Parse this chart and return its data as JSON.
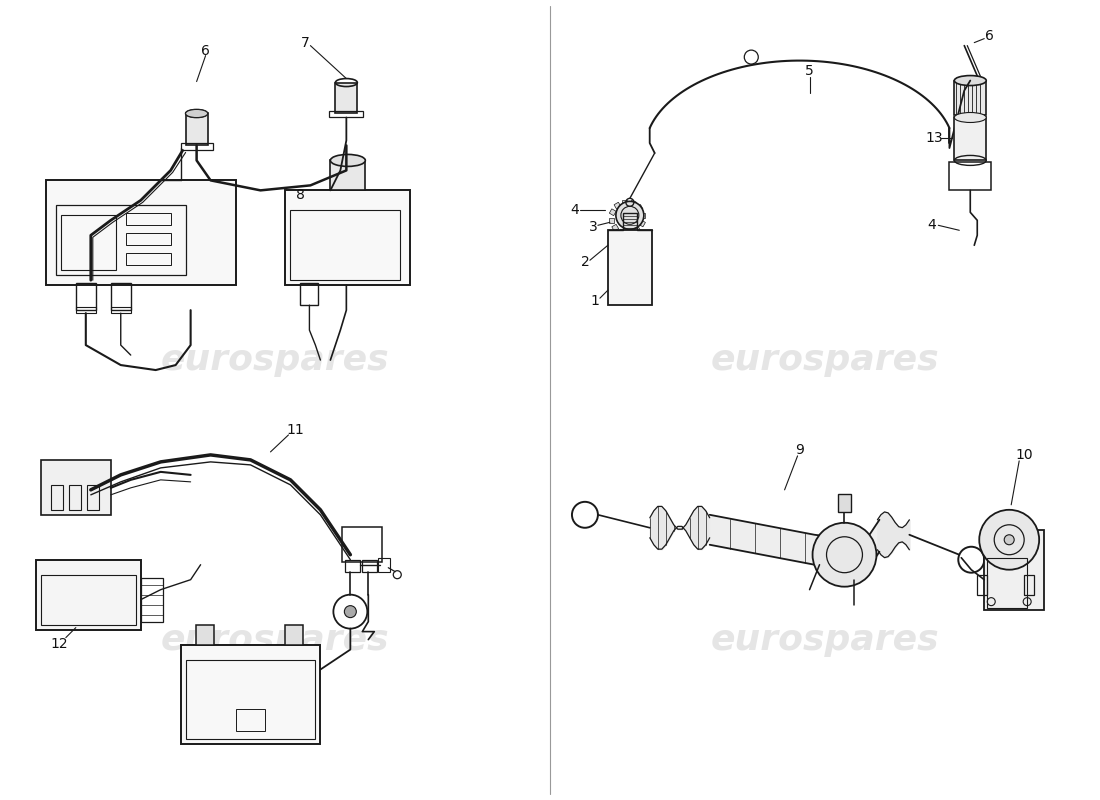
{
  "bg_color": "#ffffff",
  "line_color": "#1a1a1a",
  "watermark_color": "#cccccc",
  "watermark_text": "eurospares",
  "fig_width": 11.0,
  "fig_height": 8.0,
  "dpi": 100
}
